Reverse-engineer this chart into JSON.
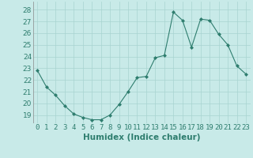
{
  "x": [
    0,
    1,
    2,
    3,
    4,
    5,
    6,
    7,
    8,
    9,
    10,
    11,
    12,
    13,
    14,
    15,
    16,
    17,
    18,
    19,
    20,
    21,
    22,
    23
  ],
  "y": [
    22.8,
    21.4,
    20.7,
    19.8,
    19.1,
    18.8,
    18.6,
    18.6,
    19.0,
    19.9,
    21.0,
    22.2,
    22.3,
    23.9,
    24.1,
    27.8,
    27.1,
    24.8,
    27.2,
    27.1,
    25.9,
    25.0,
    23.2,
    22.5
  ],
  "line_color": "#2e7d6e",
  "marker": "D",
  "marker_size": 2.0,
  "bg_color": "#c8eae8",
  "grid_color": "#a8d4d0",
  "xlabel": "Humidex (Indice chaleur)",
  "ylabel_ticks": [
    19,
    20,
    21,
    22,
    23,
    24,
    25,
    26,
    27,
    28
  ],
  "ylim": [
    18.3,
    28.7
  ],
  "xlim": [
    -0.5,
    23.5
  ],
  "xlabel_fontsize": 7.5,
  "tick_fontsize": 6.5,
  "tick_color": "#2e7d6e"
}
